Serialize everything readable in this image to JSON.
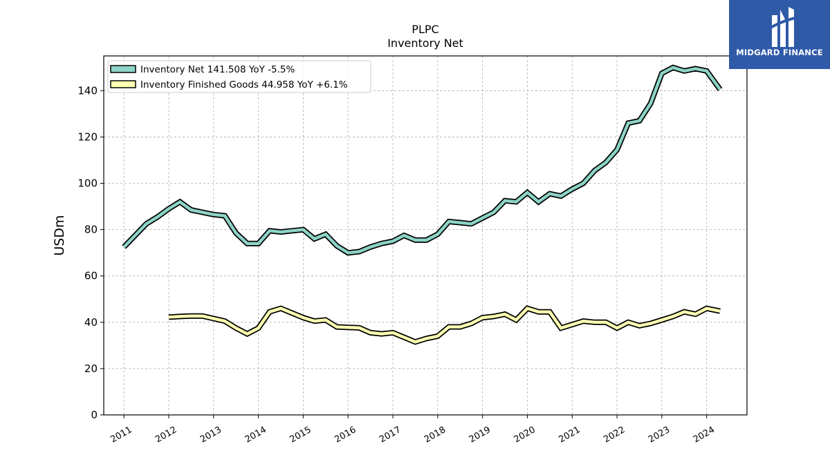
{
  "chart_data": {
    "type": "line",
    "title": "PLPC",
    "subtitle": "Inventory Net",
    "ylabel": "USDm",
    "xlabel": "",
    "xlim": [
      2010.55,
      2024.9
    ],
    "ylim": [
      0,
      155
    ],
    "yticks": [
      0,
      20,
      40,
      60,
      80,
      100,
      120,
      140
    ],
    "xticks": [
      "2011",
      "2012",
      "2013",
      "2014",
      "2015",
      "2016",
      "2017",
      "2018",
      "2019",
      "2020",
      "2021",
      "2022",
      "2023",
      "2024"
    ],
    "grid": true,
    "legend_position": "top-left",
    "series": [
      {
        "name": "Inventory Net  141.508 YoY -5.5%",
        "color": "#8dd3c7",
        "x": [
          2011.0,
          2011.25,
          2011.5,
          2011.75,
          2012.0,
          2012.25,
          2012.5,
          2012.75,
          2013.0,
          2013.25,
          2013.5,
          2013.75,
          2014.0,
          2014.25,
          2014.5,
          2014.75,
          2015.0,
          2015.25,
          2015.5,
          2015.75,
          2016.0,
          2016.25,
          2016.5,
          2016.75,
          2017.0,
          2017.25,
          2017.5,
          2017.75,
          2018.0,
          2018.25,
          2018.5,
          2018.75,
          2019.0,
          2019.25,
          2019.5,
          2019.75,
          2020.0,
          2020.25,
          2020.5,
          2020.75,
          2021.0,
          2021.25,
          2021.5,
          2021.75,
          2022.0,
          2022.25,
          2022.5,
          2022.75,
          2023.0,
          2023.25,
          2023.5,
          2023.75,
          2024.0,
          2024.3
        ],
        "values": [
          72.5,
          77.5,
          82.5,
          85.5,
          89.0,
          92.0,
          88.5,
          87.5,
          86.5,
          86.0,
          78.5,
          74.0,
          74.0,
          79.5,
          79.0,
          79.5,
          80.0,
          76.0,
          78.0,
          73.0,
          70.0,
          70.5,
          72.5,
          74.0,
          75.0,
          77.5,
          75.5,
          75.5,
          78.0,
          83.5,
          83.0,
          82.5,
          85.0,
          87.5,
          92.5,
          92.0,
          96.0,
          92.0,
          95.5,
          94.5,
          97.5,
          100.0,
          105.5,
          109.0,
          114.5,
          126.0,
          127.0,
          134.5,
          147.5,
          150.0,
          148.5,
          149.5,
          148.5,
          140.5
        ]
      },
      {
        "name": "Inventory Finished Goods  44.958 YoY +6.1%",
        "color": "#ffffb3",
        "x": [
          2012.0,
          2012.25,
          2012.5,
          2012.75,
          2013.0,
          2013.25,
          2013.5,
          2013.75,
          2014.0,
          2014.25,
          2014.5,
          2014.75,
          2015.0,
          2015.25,
          2015.5,
          2015.75,
          2016.0,
          2016.25,
          2016.5,
          2016.75,
          2017.0,
          2017.25,
          2017.5,
          2017.75,
          2018.0,
          2018.25,
          2018.5,
          2018.75,
          2019.0,
          2019.25,
          2019.5,
          2019.75,
          2020.0,
          2020.25,
          2020.5,
          2020.75,
          2021.0,
          2021.25,
          2021.5,
          2021.75,
          2022.0,
          2022.25,
          2022.5,
          2022.75,
          2023.0,
          2023.25,
          2023.5,
          2023.75,
          2024.0,
          2024.3
        ],
        "values": [
          42.2,
          42.5,
          42.7,
          42.7,
          41.6,
          40.5,
          37.5,
          35.0,
          37.5,
          44.5,
          46.0,
          44.0,
          42.0,
          40.5,
          41.0,
          38.0,
          37.8,
          37.6,
          35.5,
          35.0,
          35.5,
          33.5,
          31.5,
          33.0,
          34.0,
          38.0,
          38.0,
          39.5,
          42.0,
          42.5,
          43.5,
          41.0,
          46.0,
          44.5,
          44.5,
          37.5,
          39.0,
          40.5,
          40.0,
          40.0,
          37.5,
          40.0,
          38.5,
          39.5,
          41.0,
          42.5,
          44.5,
          43.5,
          46.0,
          44.8
        ]
      }
    ]
  },
  "logo": {
    "text": "MIDGARD FINANCE",
    "background": "#2f5aa8"
  }
}
